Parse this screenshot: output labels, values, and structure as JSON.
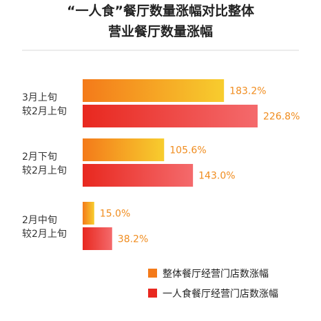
{
  "chart_data": {
    "type": "bar",
    "orientation": "horizontal",
    "title_lines": [
      "“一人食”餐厅数量涨幅对比整体",
      "营业餐厅数量涨幅"
    ],
    "categories": [
      [
        "3月上旬",
        "较2月上旬"
      ],
      [
        "2月下旬",
        "较2月上旬"
      ],
      [
        "2月中旬",
        "较2月上旬"
      ]
    ],
    "series": [
      {
        "name": "整体餐厅经营门店数涨幅",
        "values": [
          183.2,
          105.6,
          15.0
        ],
        "labels": [
          "183.2%",
          "105.6%",
          "15.0%"
        ],
        "colors": [
          "#f47a1a",
          "#f7cd2e"
        ]
      },
      {
        "name": "一人食餐厅经营门店数涨幅",
        "values": [
          226.8,
          143.0,
          38.2
        ],
        "labels": [
          "226.8%",
          "143.0%",
          "38.2%"
        ],
        "colors": [
          "#e8281f",
          "#f46a6c"
        ]
      }
    ],
    "value_unit": "%",
    "legend_position": "bottom",
    "axis_visible": false,
    "grid": false
  }
}
